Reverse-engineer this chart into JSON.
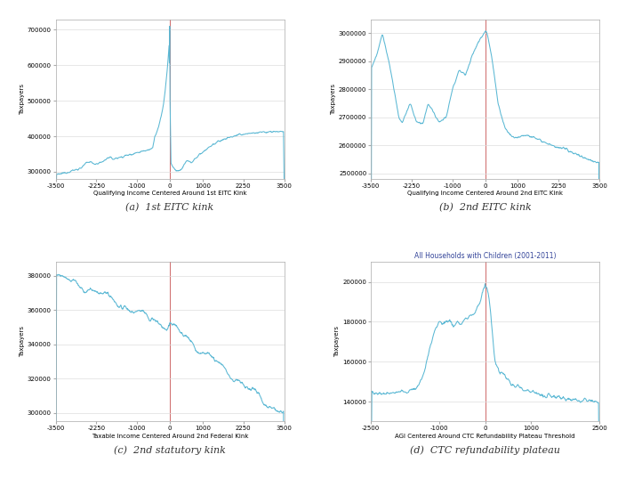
{
  "line_color": "#5bb8d4",
  "vline_color": "#d07070",
  "background_color": "#ffffff",
  "grid_color": "#dddddd",
  "text_color": "#333333",
  "caption_color": "#333333",
  "panel_a": {
    "xlabel": "Qualifying Income Centered Around 1st EITC Kink",
    "ylabel": "Taxpayers",
    "xlim": [
      -3500,
      3500
    ],
    "ylim": [
      280000,
      730000
    ],
    "xticks": [
      -3500,
      -2250,
      -1000,
      0,
      1000,
      2250,
      3500
    ],
    "yticks": [
      300000,
      400000,
      500000,
      600000,
      700000
    ],
    "caption": "(a)  1st EITC kink"
  },
  "panel_b": {
    "xlabel": "Qualifying Income Centered Around 2nd EITC Kink",
    "ylabel": "Taxpayers",
    "xlim": [
      -3500,
      3500
    ],
    "ylim": [
      2480000,
      3050000
    ],
    "xticks": [
      -3500,
      -2250,
      -1000,
      0,
      1000,
      2250,
      3500
    ],
    "yticks": [
      2500000,
      2600000,
      2700000,
      2800000,
      2900000,
      3000000
    ],
    "caption": "(b)  2nd EITC kink"
  },
  "panel_c": {
    "xlabel": "Taxable Income Centered Around 2nd Federal Kink",
    "ylabel": "Taxpayers",
    "xlim": [
      -3500,
      3500
    ],
    "ylim": [
      295000,
      388000
    ],
    "xticks": [
      -3500,
      -2250,
      -1000,
      0,
      1000,
      2250,
      3500
    ],
    "yticks": [
      300000,
      320000,
      340000,
      360000,
      380000
    ],
    "caption": "(c)  2nd statutory kink"
  },
  "panel_d": {
    "xlabel": "AGI Centered Around CTC Refundability Plateau Threshold",
    "ylabel": "Taxpayers",
    "xlim": [
      -2500,
      2500
    ],
    "ylim": [
      130000,
      210000
    ],
    "xticks": [
      -2500,
      -1000,
      0,
      1000,
      2500
    ],
    "yticks": [
      140000,
      160000,
      180000,
      200000
    ],
    "caption": "(d)  CTC refundability plateau",
    "annotation": "All Households with Children (2001-2011)"
  }
}
